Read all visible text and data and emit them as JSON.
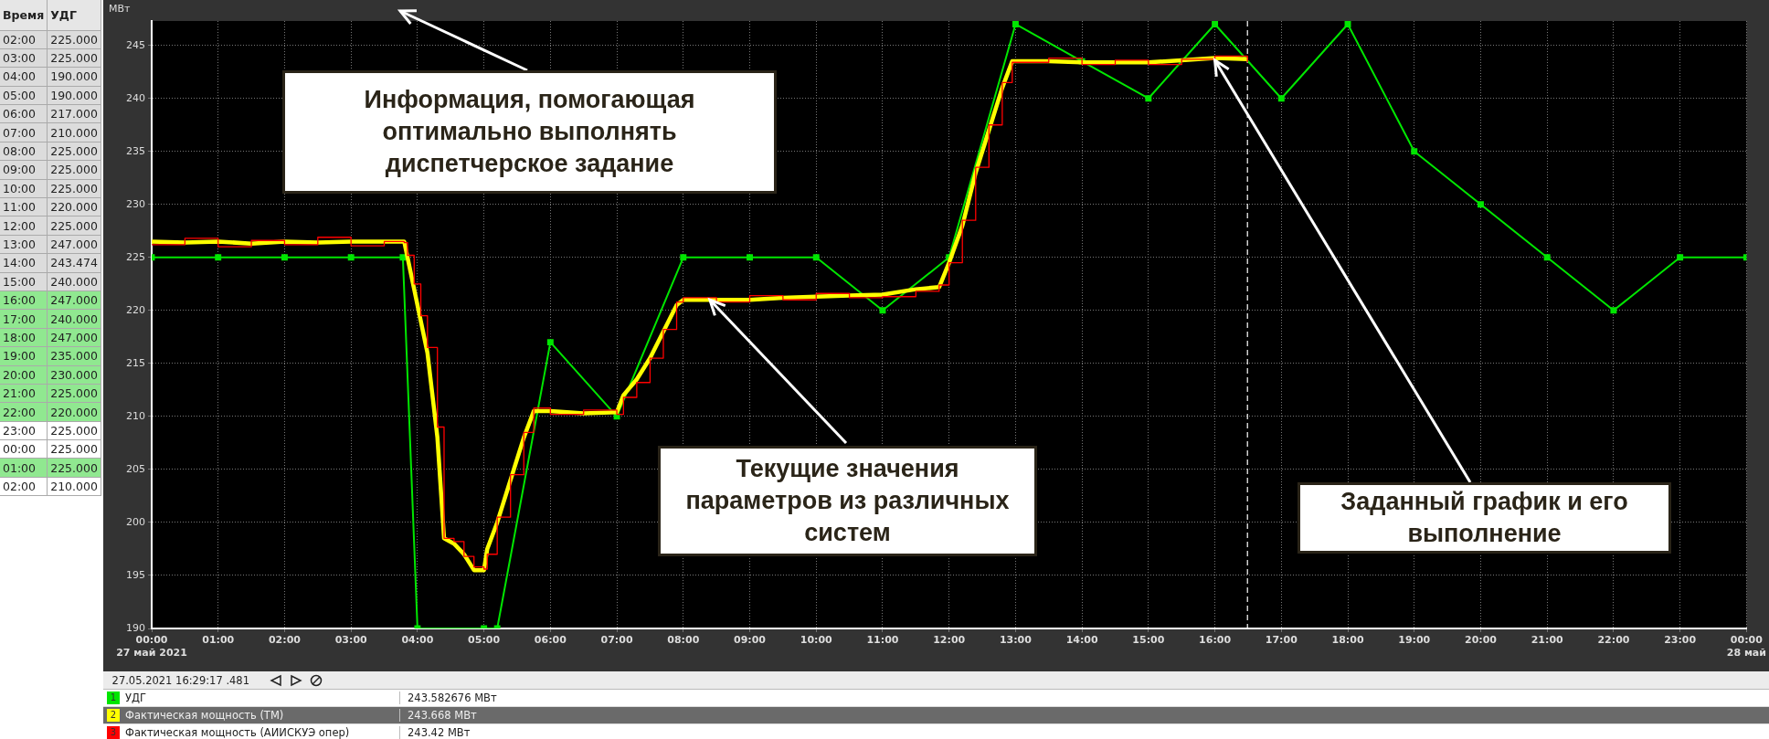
{
  "chart_data": {
    "type": "line",
    "ylabel": "МВт",
    "xlim": [
      0,
      24
    ],
    "ylim": [
      190,
      247.3
    ],
    "xticks": [
      {
        "value": 0,
        "label": "00:00\n27 май 2021"
      },
      {
        "value": 1,
        "label": "01:00"
      },
      {
        "value": 2,
        "label": "02:00"
      },
      {
        "value": 3,
        "label": "03:00"
      },
      {
        "value": 4,
        "label": "04:00"
      },
      {
        "value": 5,
        "label": "05:00"
      },
      {
        "value": 6,
        "label": "06:00"
      },
      {
        "value": 7,
        "label": "07:00"
      },
      {
        "value": 8,
        "label": "08:00"
      },
      {
        "value": 9,
        "label": "09:00"
      },
      {
        "value": 10,
        "label": "10:00"
      },
      {
        "value": 11,
        "label": "11:00"
      },
      {
        "value": 12,
        "label": "12:00"
      },
      {
        "value": 13,
        "label": "13:00"
      },
      {
        "value": 14,
        "label": "14:00"
      },
      {
        "value": 15,
        "label": "15:00"
      },
      {
        "value": 16,
        "label": "16:00"
      },
      {
        "value": 17,
        "label": "17:00"
      },
      {
        "value": 18,
        "label": "18:00"
      },
      {
        "value": 19,
        "label": "19:00"
      },
      {
        "value": 20,
        "label": "20:00"
      },
      {
        "value": 21,
        "label": "21:00"
      },
      {
        "value": 22,
        "label": "22:00"
      },
      {
        "value": 23,
        "label": "23:00"
      },
      {
        "value": 24,
        "label": "00:00\n28 май"
      }
    ],
    "yticks": [
      190,
      195,
      200,
      205,
      210,
      215,
      220,
      225,
      230,
      235,
      240,
      245
    ],
    "grid": true,
    "legend": "bottom",
    "ref_lines": [
      {
        "axis": "x",
        "value": 16.49,
        "color": "#ffffff",
        "line_style": "dashed"
      }
    ],
    "series": [
      {
        "name": "УДГ",
        "color": "#00e600",
        "marker": "square",
        "x": [
          0,
          1,
          2,
          3,
          3.78,
          4,
          5,
          5.2,
          6,
          7,
          8,
          9,
          10,
          11,
          12,
          13,
          14,
          15,
          16,
          17,
          18,
          19,
          20,
          21,
          22,
          23,
          24
        ],
        "values": [
          225,
          225,
          225,
          225,
          225,
          190,
          190,
          190,
          217,
          210,
          225,
          225,
          225,
          220,
          225,
          247,
          243.5,
          240,
          247,
          240,
          247,
          235,
          230,
          225,
          220,
          225,
          225
        ]
      },
      {
        "name": "Фактическая мощность (ТМ)",
        "color": "#ffff00",
        "x": [
          0,
          0.5,
          1,
          1.5,
          2,
          2.5,
          3,
          3.5,
          3.8,
          3.85,
          3.95,
          4.05,
          4.15,
          4.3,
          4.4,
          4.55,
          4.7,
          4.85,
          5.0,
          5.05,
          5.2,
          5.4,
          5.6,
          5.75,
          6,
          6.5,
          7,
          7.1,
          7.3,
          7.5,
          7.7,
          7.9,
          8,
          8.5,
          9,
          9.5,
          10,
          10.5,
          11,
          11.5,
          11.85,
          12,
          12.2,
          12.4,
          12.6,
          12.8,
          12.95,
          13.5,
          14,
          14.5,
          15,
          15.5,
          16,
          16.49
        ],
        "values": [
          226.5,
          226.4,
          226.5,
          226.3,
          226.5,
          226.4,
          226.5,
          226.5,
          226.5,
          225,
          222,
          219,
          216,
          208,
          198.5,
          198,
          197,
          195.5,
          195.5,
          197.5,
          200,
          204,
          208,
          210.5,
          210.5,
          210.3,
          210.4,
          212,
          213.5,
          215.5,
          218,
          220.5,
          221,
          221,
          221,
          221.2,
          221.3,
          221.4,
          221.5,
          222,
          222.2,
          224.5,
          228,
          233,
          237,
          241,
          243.5,
          243.5,
          243.4,
          243.4,
          243.4,
          243.6,
          243.8,
          243.7
        ]
      },
      {
        "name": "Фактическая мощность (АИИСКУЭ опер)",
        "color": "#ff0000",
        "type": "step",
        "x": [
          0,
          0.5,
          1,
          1.5,
          2,
          2.5,
          3,
          3.5,
          3.8,
          3.85,
          3.95,
          4.05,
          4.15,
          4.3,
          4.4,
          4.55,
          4.7,
          4.85,
          5.0,
          5.05,
          5.2,
          5.4,
          5.6,
          5.75,
          6,
          6.5,
          7,
          7.1,
          7.3,
          7.5,
          7.7,
          7.9,
          8,
          8.5,
          9,
          9.5,
          10,
          10.5,
          11,
          11.5,
          11.85,
          12,
          12.2,
          12.4,
          12.6,
          12.8,
          12.95,
          13.5,
          14,
          14.5,
          15,
          15.5,
          16,
          16.49
        ],
        "values": [
          226.2,
          226.8,
          226,
          226.6,
          226.2,
          226.9,
          226.1,
          226.5,
          226.4,
          225.2,
          222.5,
          219.5,
          216.5,
          209,
          198.5,
          198.2,
          196.8,
          195.8,
          195.6,
          197,
          200.5,
          204.5,
          208.5,
          210.8,
          210.2,
          210.6,
          210.2,
          211.8,
          213.2,
          215.5,
          218.2,
          220.8,
          221.2,
          220.8,
          221.4,
          221,
          221.6,
          221.2,
          221.3,
          221.8,
          222.4,
          224.5,
          228.5,
          233.5,
          237.5,
          241.5,
          243.4,
          243.8,
          243.2,
          243.6,
          243.2,
          243.7,
          244,
          243.4
        ]
      }
    ],
    "annotations": [
      "27.05.2021 16:29:17 .481",
      "243.582676 МВт",
      "243.668 МВт",
      "243.42 МВт",
      "1",
      "2",
      "3",
      "Информация, помогающая оптимально выполнять диспетчерское задание",
      {
        "text": "Текущие значения параметров из различных систем",
        "x": 8.4,
        "y": 221
      },
      {
        "text": "Заданный график и его выполнение",
        "x": 16,
        "y": 243.6
      },
      "Время",
      "УДГ",
      "02:00",
      "225.000",
      "03:00",
      "225.000",
      "04:00",
      "190.000",
      "05:00",
      "190.000",
      "06:00",
      "217.000",
      "07:00",
      "210.000",
      "08:00",
      "225.000",
      "09:00",
      "225.000",
      "10:00",
      "225.000",
      "11:00",
      "220.000",
      "12:00",
      "225.000",
      "13:00",
      "247.000",
      "14:00",
      "243.474",
      "15:00",
      "240.000",
      "16:00",
      "247.000",
      "17:00",
      "240.000",
      "18:00",
      "247.000",
      "19:00",
      "235.000",
      "20:00",
      "230.000",
      "21:00",
      "225.000",
      "22:00",
      "220.000",
      "23:00",
      "225.000",
      "00:00",
      "225.000",
      "01:00",
      "225.000",
      "02:00",
      "210.000"
    ]
  }
}
